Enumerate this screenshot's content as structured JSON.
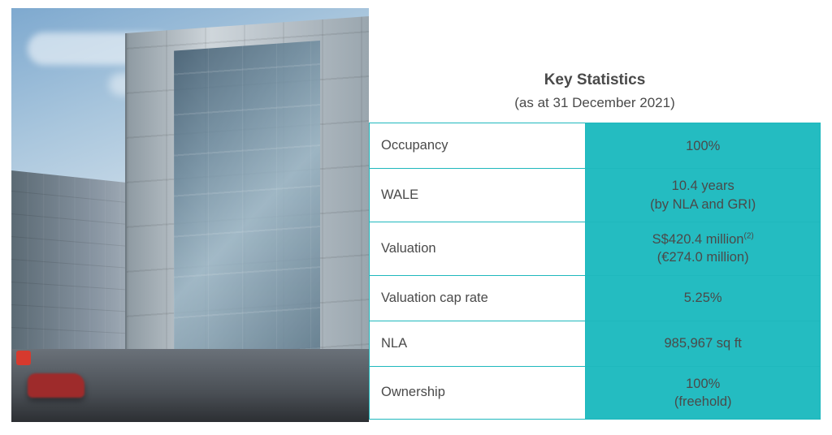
{
  "header": {
    "title": "Key Statistics",
    "subtitle": "(as at 31 December 2021)"
  },
  "table": {
    "border_color": "#1fb8bd",
    "value_bg": "#24bcc1",
    "label_bg": "#ffffff",
    "text_color": "#4a4a4a",
    "rows": [
      {
        "label": "Occupancy",
        "value_line1": "100%",
        "value_line2": ""
      },
      {
        "label": "WALE",
        "value_line1": "10.4 years",
        "value_line2": "(by NLA and GRI)"
      },
      {
        "label": "Valuation",
        "value_line1": "S$420.4 million",
        "sup": "(2)",
        "value_line2": "(€274.0 million)"
      },
      {
        "label": "Valuation cap rate",
        "value_line1": "5.25%",
        "value_line2": ""
      },
      {
        "label": "NLA",
        "value_line1": "985,967 sq ft",
        "value_line2": ""
      },
      {
        "label": "Ownership",
        "value_line1": "100%",
        "value_line2": "(freehold)"
      }
    ]
  }
}
